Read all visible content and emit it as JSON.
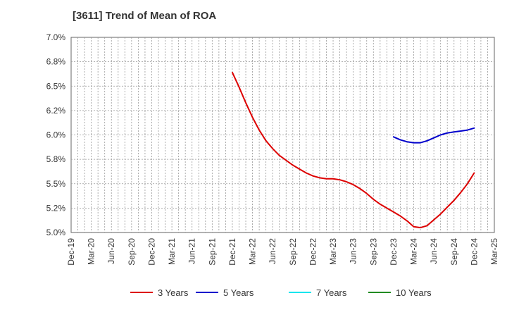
{
  "chart_data": {
    "type": "line",
    "title": "[3611]  Trend of Mean of ROA",
    "xlabel": "",
    "ylabel": "",
    "x_categories": [
      "Dec-19",
      "Mar-20",
      "Jun-20",
      "Sep-20",
      "Dec-20",
      "Mar-21",
      "Jun-21",
      "Sep-21",
      "Dec-21",
      "Mar-22",
      "Jun-22",
      "Sep-22",
      "Dec-22",
      "Mar-23",
      "Jun-23",
      "Sep-23",
      "Dec-23",
      "Mar-24",
      "Jun-24",
      "Sep-24",
      "Dec-24",
      "Mar-25"
    ],
    "ylim": [
      5.0,
      7.0
    ],
    "y_ticks": [
      "7.0%",
      "6.8%",
      "6.5%",
      "6.2%",
      "6.0%",
      "5.8%",
      "5.5%",
      "5.2%",
      "5.0%"
    ],
    "grid": true,
    "legend_position": "bottom",
    "series": [
      {
        "name": "3 Years",
        "color": "#dd0000",
        "points": [
          [
            "Dec-21",
            6.64
          ],
          [
            "Jan-22",
            6.49
          ],
          [
            "Feb-22",
            6.33
          ],
          [
            "Mar-22",
            6.18
          ],
          [
            "Apr-22",
            6.05
          ],
          [
            "May-22",
            5.94
          ],
          [
            "Jun-22",
            5.86
          ],
          [
            "Jul-22",
            5.79
          ],
          [
            "Aug-22",
            5.74
          ],
          [
            "Sep-22",
            5.69
          ],
          [
            "Oct-22",
            5.65
          ],
          [
            "Nov-22",
            5.61
          ],
          [
            "Dec-22",
            5.58
          ],
          [
            "Jan-23",
            5.56
          ],
          [
            "Feb-23",
            5.55
          ],
          [
            "Mar-23",
            5.55
          ],
          [
            "Apr-23",
            5.54
          ],
          [
            "May-23",
            5.52
          ],
          [
            "Jun-23",
            5.49
          ],
          [
            "Jul-23",
            5.45
          ],
          [
            "Aug-23",
            5.4
          ],
          [
            "Sep-23",
            5.34
          ],
          [
            "Oct-23",
            5.29
          ],
          [
            "Nov-23",
            5.25
          ],
          [
            "Dec-23",
            5.21
          ],
          [
            "Jan-24",
            5.17
          ],
          [
            "Feb-24",
            5.12
          ],
          [
            "Mar-24",
            5.06
          ],
          [
            "Apr-24",
            5.05
          ],
          [
            "May-24",
            5.07
          ],
          [
            "Jun-24",
            5.13
          ],
          [
            "Jul-24",
            5.19
          ],
          [
            "Aug-24",
            5.26
          ],
          [
            "Sep-24",
            5.33
          ],
          [
            "Oct-24",
            5.41
          ],
          [
            "Nov-24",
            5.5
          ],
          [
            "Dec-24",
            5.61
          ]
        ]
      },
      {
        "name": "5 Years",
        "color": "#0000cc",
        "points": [
          [
            "Dec-23",
            5.98
          ],
          [
            "Jan-24",
            5.95
          ],
          [
            "Feb-24",
            5.93
          ],
          [
            "Mar-24",
            5.92
          ],
          [
            "Apr-24",
            5.92
          ],
          [
            "May-24",
            5.94
          ],
          [
            "Jun-24",
            5.97
          ],
          [
            "Jul-24",
            6.0
          ],
          [
            "Aug-24",
            6.02
          ],
          [
            "Sep-24",
            6.03
          ],
          [
            "Oct-24",
            6.04
          ],
          [
            "Nov-24",
            6.05
          ],
          [
            "Dec-24",
            6.07
          ]
        ]
      },
      {
        "name": "7 Years",
        "color": "#00e5ee",
        "points": []
      },
      {
        "name": "10 Years",
        "color": "#228b22",
        "points": []
      }
    ]
  }
}
